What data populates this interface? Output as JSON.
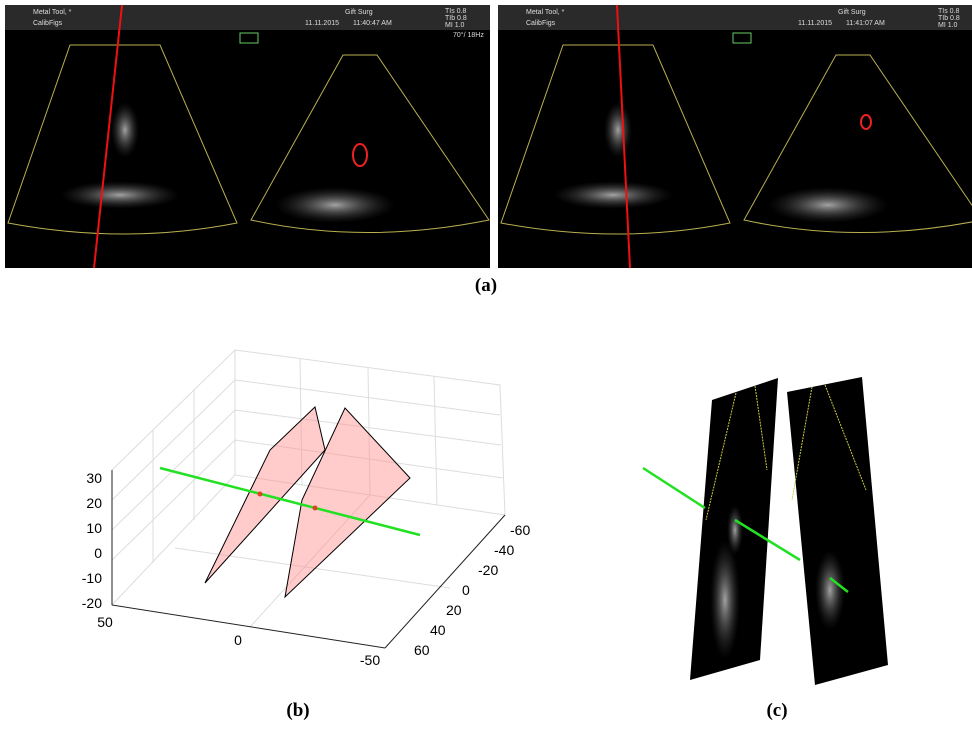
{
  "panel_a": {
    "caption": "(a)",
    "left": {
      "tool": "Metal Tool, *",
      "project": "CalibFigs",
      "study": "Gift Surg",
      "date": "11.11.2015",
      "time": "11:40:47 AM",
      "tis": "TIs 0.8",
      "tib": "TIb 0.8",
      "mi": "MI 1.0",
      "rate": "70°/ 18Hz"
    },
    "right": {
      "tool": "Metal Tool, *",
      "project": "CalibFigs",
      "study": "Gift Surg",
      "date": "11.11.2015",
      "time": "11:41:07 AM",
      "tis": "TIs 0.8",
      "tib": "TIb 0.8",
      "mi": "MI 1.0"
    }
  },
  "panel_b": {
    "caption": "(b)",
    "z_ticks": [
      30,
      20,
      10,
      0,
      -10,
      -20
    ],
    "x_ticks": [
      50,
      0,
      -50
    ],
    "y_ticks": [
      -60,
      -40,
      -20,
      0,
      20,
      40,
      60
    ]
  },
  "panel_c": {
    "caption": "(c)"
  }
}
